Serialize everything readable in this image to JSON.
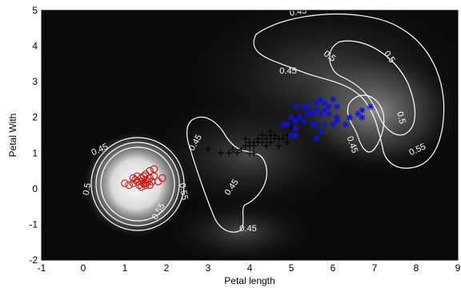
{
  "chart_data": {
    "type": "scatter",
    "title": "",
    "xlabel": "Petal length",
    "ylabel": "Petal With",
    "xlim": [
      -1,
      9
    ],
    "ylim": [
      -2,
      5
    ],
    "x_ticks": [
      "-1",
      "0",
      "1",
      "2",
      "3",
      "4",
      "5",
      "6",
      "7",
      "8",
      "9"
    ],
    "y_ticks": [
      "-2",
      "-1",
      "0",
      "1",
      "2",
      "3",
      "4",
      "5"
    ],
    "grid": false,
    "legend": "none",
    "background": "grayscale density map",
    "series": [
      {
        "marker": "circle",
        "color": "#d01010",
        "points": [
          [
            1.0,
            0.15
          ],
          [
            1.1,
            0.1
          ],
          [
            1.2,
            0.15
          ],
          [
            1.25,
            0.25
          ],
          [
            1.3,
            0.2
          ],
          [
            1.3,
            0.35
          ],
          [
            1.35,
            0.1
          ],
          [
            1.4,
            0.2
          ],
          [
            1.4,
            0.3
          ],
          [
            1.45,
            0.15
          ],
          [
            1.5,
            0.25
          ],
          [
            1.5,
            0.4
          ],
          [
            1.5,
            0.1
          ],
          [
            1.55,
            0.2
          ],
          [
            1.6,
            0.3
          ],
          [
            1.6,
            0.5
          ],
          [
            1.65,
            0.2
          ],
          [
            1.7,
            0.35
          ],
          [
            1.7,
            0.55
          ],
          [
            1.4,
            0.05
          ],
          [
            1.9,
            0.3
          ],
          [
            1.2,
            0.3
          ],
          [
            1.5,
            0.15
          ],
          [
            1.6,
            0.1
          ],
          [
            1.45,
            0.35
          ],
          [
            1.8,
            0.2
          ]
        ]
      },
      {
        "marker": "plus",
        "color": "#000000",
        "points": [
          [
            3.0,
            1.1
          ],
          [
            3.3,
            1.0
          ],
          [
            3.5,
            1.0
          ],
          [
            3.6,
            1.1
          ],
          [
            3.7,
            1.0
          ],
          [
            3.8,
            1.1
          ],
          [
            3.9,
            1.2
          ],
          [
            3.9,
            1.4
          ],
          [
            4.0,
            1.3
          ],
          [
            4.0,
            1.0
          ],
          [
            4.1,
            1.3
          ],
          [
            4.1,
            1.2
          ],
          [
            4.2,
            1.3
          ],
          [
            4.2,
            1.4
          ],
          [
            4.3,
            1.3
          ],
          [
            4.3,
            1.5
          ],
          [
            4.4,
            1.4
          ],
          [
            4.4,
            1.2
          ],
          [
            4.5,
            1.5
          ],
          [
            4.5,
            1.3
          ],
          [
            4.6,
            1.4
          ],
          [
            4.6,
            1.5
          ],
          [
            4.7,
            1.4
          ],
          [
            4.7,
            1.2
          ],
          [
            4.8,
            1.4
          ],
          [
            4.8,
            1.8
          ],
          [
            4.9,
            1.5
          ],
          [
            5.0,
            1.7
          ],
          [
            4.0,
            1.2
          ],
          [
            4.5,
            1.6
          ],
          [
            4.1,
            1.0
          ],
          [
            4.9,
            1.3
          ]
        ]
      },
      {
        "marker": "star",
        "color": "#1010e0",
        "points": [
          [
            4.8,
            1.8
          ],
          [
            4.9,
            1.8
          ],
          [
            5.0,
            2.0
          ],
          [
            5.0,
            1.5
          ],
          [
            5.1,
            1.9
          ],
          [
            5.1,
            2.3
          ],
          [
            5.1,
            1.5
          ],
          [
            5.2,
            2.0
          ],
          [
            5.3,
            2.3
          ],
          [
            5.4,
            2.1
          ],
          [
            5.5,
            1.8
          ],
          [
            5.5,
            2.1
          ],
          [
            5.6,
            2.4
          ],
          [
            5.6,
            1.4
          ],
          [
            5.6,
            2.2
          ],
          [
            5.7,
            2.1
          ],
          [
            5.7,
            2.5
          ],
          [
            5.8,
            1.8
          ],
          [
            5.8,
            2.2
          ],
          [
            5.9,
            2.1
          ],
          [
            5.9,
            2.3
          ],
          [
            6.0,
            1.8
          ],
          [
            6.0,
            2.5
          ],
          [
            6.1,
            1.9
          ],
          [
            6.1,
            2.3
          ],
          [
            6.3,
            1.8
          ],
          [
            6.4,
            2.0
          ],
          [
            6.6,
            2.1
          ],
          [
            6.7,
            2.0
          ],
          [
            6.7,
            2.2
          ],
          [
            6.9,
            2.3
          ],
          [
            5.3,
            1.9
          ],
          [
            5.6,
            1.8
          ],
          [
            5.4,
            2.3
          ],
          [
            5.8,
            2.4
          ],
          [
            5.1,
            1.7
          ],
          [
            5.7,
            1.6
          ],
          [
            6.1,
            2.0
          ]
        ]
      }
    ],
    "contours": [
      {
        "level": "0.45",
        "labels": [
          "0.45",
          "0.45",
          "0.45",
          "0.45",
          "0.45",
          "0.45",
          "0.45"
        ]
      },
      {
        "level": "0.5",
        "labels": [
          "0.5",
          "0.5",
          "0.5",
          "0.5"
        ]
      },
      {
        "level": "0.55",
        "labels": [
          "0.55",
          "0.55",
          "0.55"
        ]
      }
    ]
  }
}
